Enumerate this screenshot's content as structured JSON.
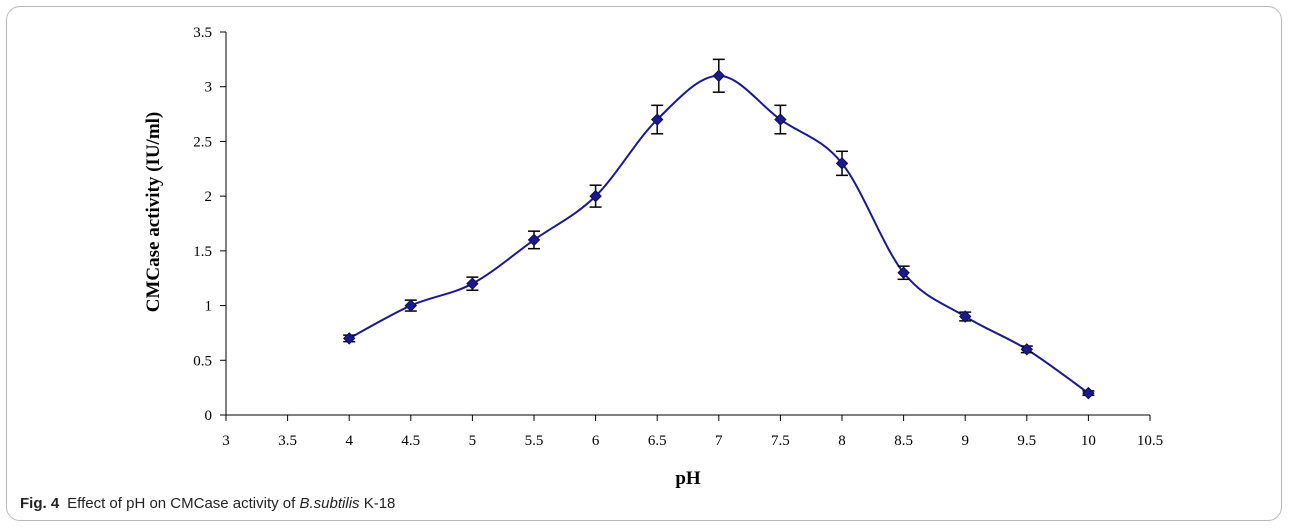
{
  "caption": {
    "label": "Fig. 4",
    "text_before": "Effect of pH on CMCase activity of",
    "species": "B.subtilis",
    "text_after": "K-18"
  },
  "chart_data": {
    "type": "line",
    "xlabel": "pH",
    "ylabel": "CMCase activity (IU/ml)",
    "xlim": [
      3,
      10.5
    ],
    "ylim": [
      0,
      3.5
    ],
    "x_ticks": [
      "3",
      "3.5",
      "4",
      "4.5",
      "5",
      "5.5",
      "6",
      "6.5",
      "7",
      "7.5",
      "8",
      "8.5",
      "9",
      "9.5",
      "10",
      "10.5"
    ],
    "y_ticks": [
      "0",
      "0.5",
      "1",
      "1.5",
      "2",
      "2.5",
      "3",
      "3.5"
    ],
    "grid": false,
    "smooth": true,
    "marker": "diamond",
    "color": "#1a1a8c",
    "series": [
      {
        "x": [
          4,
          4.5,
          5,
          5.5,
          6,
          6.5,
          7,
          7.5,
          8,
          8.5,
          9,
          9.5,
          10
        ],
        "y": [
          0.7,
          1.0,
          1.2,
          1.6,
          2.0,
          2.7,
          3.1,
          2.7,
          2.3,
          1.3,
          0.9,
          0.6,
          0.2
        ],
        "error": [
          0.03,
          0.05,
          0.06,
          0.08,
          0.1,
          0.13,
          0.15,
          0.13,
          0.11,
          0.06,
          0.04,
          0.03,
          0.02
        ]
      }
    ]
  }
}
